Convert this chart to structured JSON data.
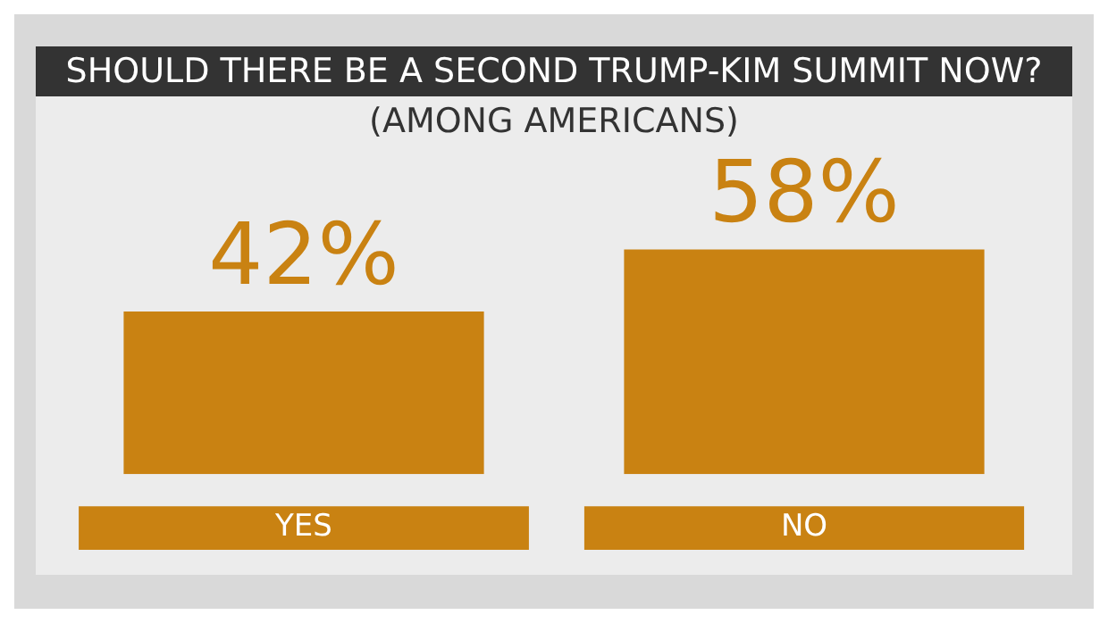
{
  "chart_data": {
    "type": "bar",
    "title": "SHOULD THERE BE A SECOND TRUMP-KIM SUMMIT NOW?",
    "subtitle": "(AMONG AMERICANS)",
    "categories": [
      "YES",
      "NO"
    ],
    "values": [
      42,
      58
    ],
    "value_labels": [
      "42%",
      "58%"
    ],
    "color": "#c98212"
  }
}
